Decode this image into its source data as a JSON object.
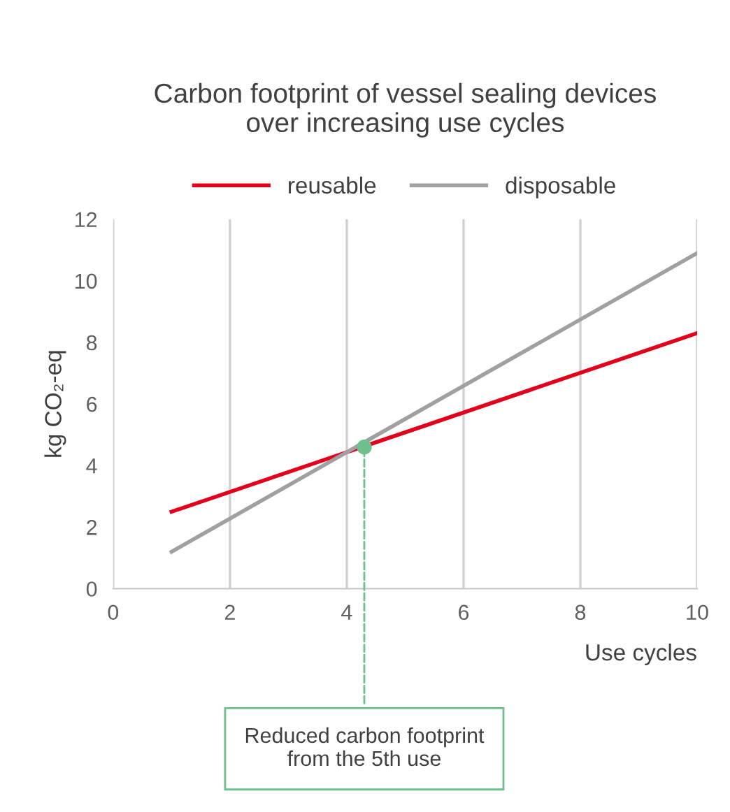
{
  "chart_data": {
    "type": "line",
    "title": "Carbon footprint of vessel sealing devices\nover increasing use cycles",
    "xlabel": "Use cycles",
    "ylabel": "kg CO₂-eq",
    "series": [
      {
        "name": "reusable",
        "color": "#e3001b",
        "x": [
          1,
          10
        ],
        "values": [
          2.5,
          8.3
        ]
      },
      {
        "name": "disposable",
        "color": "#a0a0a0",
        "x": [
          1,
          10
        ],
        "values": [
          1.2,
          10.9
        ]
      },
      {
        "type": "scatter",
        "marker": "circle",
        "color": "#6cc08b",
        "x": [
          4.3
        ],
        "values": [
          4.6
        ]
      }
    ],
    "annotations": [
      {
        "text": "Reduced carbon footprint\nfrom the 5th use",
        "x": 4.3,
        "y": 4.6
      }
    ],
    "xlim": [
      0,
      10
    ],
    "xticks": [
      0,
      2,
      4,
      6,
      8,
      10
    ],
    "ylim": [
      0,
      12
    ],
    "yticks": [
      0,
      2,
      4,
      6,
      8,
      10,
      12
    ],
    "grid": "x",
    "legend": "top",
    "marker": "none",
    "line_style": "solid"
  }
}
